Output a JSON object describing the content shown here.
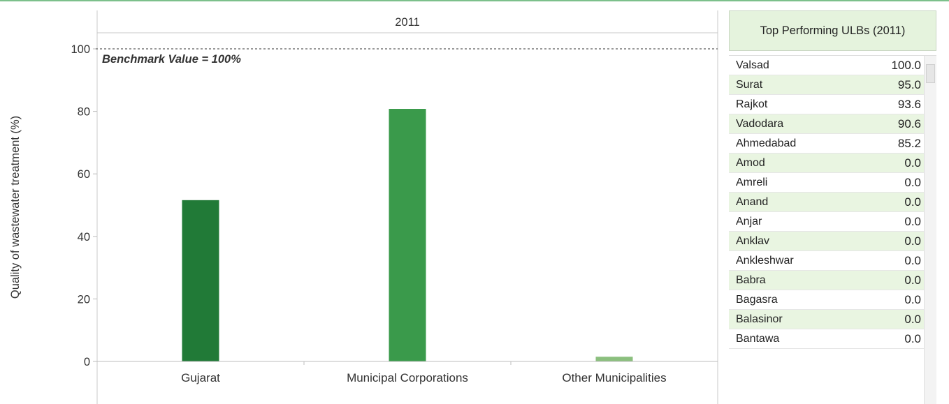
{
  "chart_data": {
    "type": "bar",
    "panel_title": "2011",
    "categories": [
      "Gujarat",
      "Municipal Corporations",
      "Other Municipalities"
    ],
    "values": [
      51.6,
      80.8,
      1.5
    ],
    "bar_colors": [
      "#217a37",
      "#3a9a4b",
      "#8bbf7e"
    ],
    "ylabel": "Quality of wastewater treatment (%)",
    "ylim": [
      0,
      105
    ],
    "yticks": [
      0,
      20,
      40,
      60,
      80,
      100
    ],
    "benchmark": {
      "value": 100,
      "label": "Benchmark Value = 100%"
    },
    "grid": false
  },
  "top_ulbs": {
    "title": "Top Performing ULBs (2011)",
    "rows": [
      {
        "name": "Valsad",
        "value": "100.0"
      },
      {
        "name": "Surat",
        "value": "95.0"
      },
      {
        "name": "Rajkot",
        "value": "93.6"
      },
      {
        "name": "Vadodara",
        "value": "90.6"
      },
      {
        "name": "Ahmedabad",
        "value": "85.2"
      },
      {
        "name": "Amod",
        "value": "0.0"
      },
      {
        "name": "Amreli",
        "value": "0.0"
      },
      {
        "name": "Anand",
        "value": "0.0"
      },
      {
        "name": "Anjar",
        "value": "0.0"
      },
      {
        "name": "Anklav",
        "value": "0.0"
      },
      {
        "name": "Ankleshwar",
        "value": "0.0"
      },
      {
        "name": "Babra",
        "value": "0.0"
      },
      {
        "name": "Bagasra",
        "value": "0.0"
      },
      {
        "name": "Balasinor",
        "value": "0.0"
      },
      {
        "name": "Bantawa",
        "value": "0.0"
      }
    ]
  },
  "colors": {
    "accent_green": "#7cc08b",
    "row_alt": "#e9f5e1",
    "header_bg": "#e5f3dd"
  }
}
